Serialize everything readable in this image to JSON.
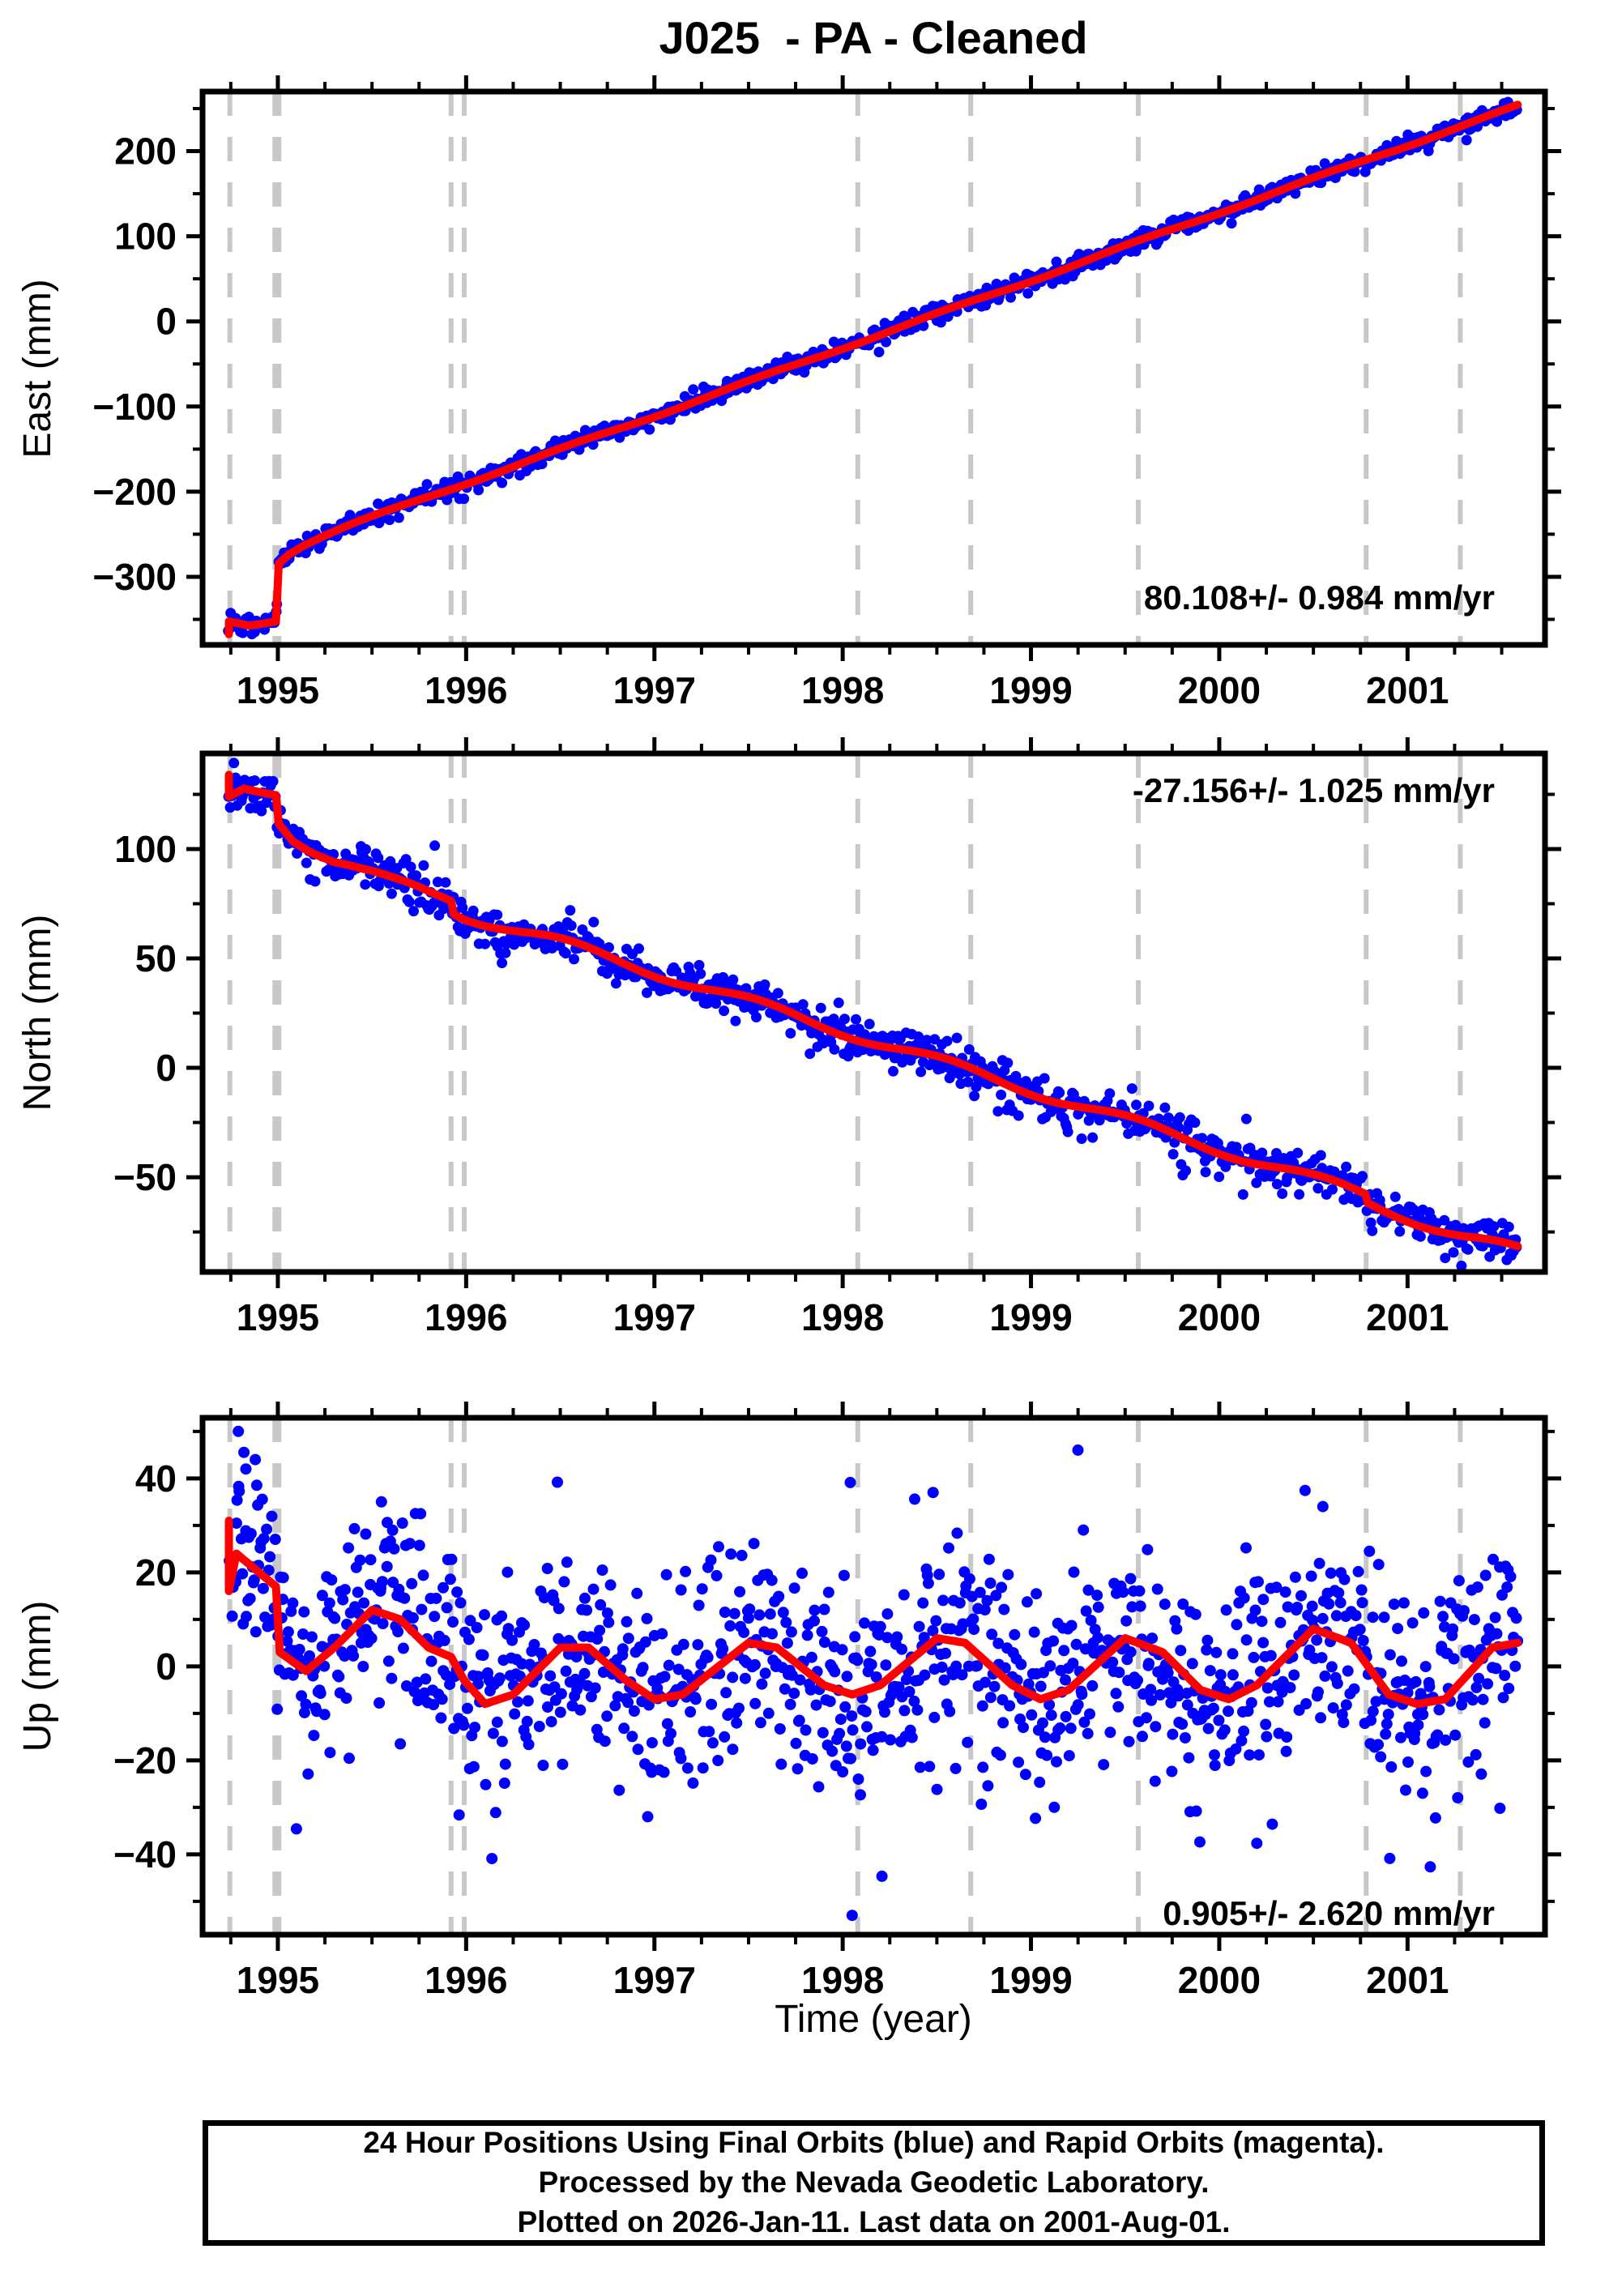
{
  "chart_data": {
    "type": "scatter",
    "title": "J025  - PA - Cleaned",
    "x_axis": {
      "label": "Time (year)",
      "min": 1994.6,
      "max": 2001.73,
      "major_ticks": [
        1995,
        1996,
        1997,
        1998,
        1999,
        2000,
        2001
      ],
      "minor_step": 0.25
    },
    "data_span": [
      1994.735,
      2001.585
    ],
    "events": [
      {
        "t": 1994.745,
        "weight": "thin"
      },
      {
        "t": 1994.995,
        "weight": "thick"
      },
      {
        "t": 1995.92,
        "weight": "thin"
      },
      {
        "t": 1995.99,
        "weight": "thin"
      },
      {
        "t": 1998.08,
        "weight": "thin"
      },
      {
        "t": 1998.68,
        "weight": "thin"
      },
      {
        "t": 1999.57,
        "weight": "thin"
      },
      {
        "t": 2000.78,
        "weight": "thin"
      },
      {
        "t": 2001.28,
        "weight": "thin"
      }
    ],
    "panels": [
      {
        "name": "east",
        "ylabel": "East (mm)",
        "rate_text": "80.108+/- 0.984 mm/yr",
        "rate_anchor": "bottom-right",
        "ylim": [
          -380,
          270
        ],
        "yticks": [
          200,
          100,
          0,
          -100,
          -200,
          -300
        ],
        "y_minor_step": 50,
        "red_curve": [
          [
            1994.74,
            -368
          ],
          [
            1994.74,
            -353
          ],
          [
            1994.85,
            -357
          ],
          [
            1994.99,
            -351
          ],
          [
            1995.005,
            -283
          ],
          [
            1995.06,
            -272
          ],
          [
            1995.14,
            -262
          ],
          [
            1995.25,
            -251
          ],
          [
            1995.4,
            -238
          ],
          [
            1995.6,
            -222
          ],
          [
            1995.8,
            -206
          ],
          [
            1996.0,
            -190
          ],
          [
            1997.0,
            -111
          ],
          [
            1998.0,
            -31
          ],
          [
            1999.0,
            48
          ],
          [
            2000.0,
            128
          ],
          [
            2001.0,
            207
          ],
          [
            2001.585,
            253
          ]
        ],
        "seasonal": {
          "amp": 1.5,
          "phase": 0.3
        },
        "scatter": {
          "sigma": 5.5,
          "n": 900,
          "radius": 6.5,
          "outlier_every": 41,
          "outlier_scale": 2.1
        },
        "extra_points": []
      },
      {
        "name": "north",
        "ylabel": "North (mm)",
        "rate_text": "-27.156+/- 1.025 mm/yr",
        "rate_anchor": "top-right",
        "ylim": [
          -93.3,
          143.7
        ],
        "yticks": [
          100,
          50,
          0,
          -50
        ],
        "y_minor_step": 25,
        "red_curve": [
          [
            1994.74,
            133
          ],
          [
            1994.74,
            123
          ],
          [
            1994.82,
            128
          ],
          [
            1994.99,
            127
          ],
          [
            1995.005,
            114
          ],
          [
            1995.08,
            106
          ],
          [
            1995.18,
            100
          ],
          [
            1995.3,
            94
          ],
          [
            1995.45,
            89
          ],
          [
            1995.6,
            85
          ],
          [
            1995.75,
            82
          ],
          [
            1995.92,
            78
          ],
          [
            1995.935,
            72
          ],
          [
            1995.99,
            70
          ],
          [
            1996.5,
            57
          ],
          [
            1997.0,
            44
          ],
          [
            1997.5,
            30
          ],
          [
            1998.0,
            17
          ],
          [
            1998.5,
            3
          ],
          [
            1999.0,
            -10
          ],
          [
            1999.5,
            -24
          ],
          [
            2000.0,
            -37
          ],
          [
            2000.5,
            -51
          ],
          [
            2000.775,
            -58
          ],
          [
            2000.79,
            -62
          ],
          [
            2001.0,
            -68
          ],
          [
            2001.3,
            -77
          ],
          [
            2001.585,
            -84
          ]
        ],
        "seasonal": {
          "amp": 2.5,
          "phase": 0.3
        },
        "scatter": {
          "sigma": 5.0,
          "n": 900,
          "radius": 6.5,
          "outlier_every": 47,
          "outlier_scale": 2.0
        },
        "extra_points": []
      },
      {
        "name": "up",
        "ylabel": "Up (mm)",
        "rate_text": "0.905+/- 2.620 mm/yr",
        "rate_anchor": "bottom-right",
        "ylim": [
          -57.1,
          52.9
        ],
        "yticks": [
          40,
          20,
          0,
          -20,
          -40
        ],
        "y_minor_step": 10,
        "red_curve": [
          [
            1994.74,
            31
          ],
          [
            1994.74,
            16
          ],
          [
            1994.78,
            24
          ],
          [
            1994.9,
            20
          ],
          [
            1994.99,
            17
          ],
          [
            1995.01,
            3
          ],
          [
            1995.15,
            -1
          ],
          [
            1995.3,
            4
          ],
          [
            1995.5,
            12
          ],
          [
            1995.65,
            10
          ],
          [
            1995.8,
            4
          ],
          [
            1995.92,
            2
          ],
          [
            1995.99,
            -3
          ],
          [
            1996.1,
            -8
          ],
          [
            1996.25,
            -6
          ],
          [
            1996.5,
            4
          ],
          [
            1996.65,
            4
          ],
          [
            1996.85,
            -3
          ],
          [
            1997.0,
            -7
          ],
          [
            1997.15,
            -6
          ],
          [
            1997.5,
            5
          ],
          [
            1997.65,
            4
          ],
          [
            1997.9,
            -4
          ],
          [
            1998.05,
            -6
          ],
          [
            1998.2,
            -4
          ],
          [
            1998.5,
            6
          ],
          [
            1998.65,
            5
          ],
          [
            1998.9,
            -4
          ],
          [
            1999.05,
            -7
          ],
          [
            1999.2,
            -5
          ],
          [
            1999.5,
            6
          ],
          [
            1999.7,
            3
          ],
          [
            1999.9,
            -5
          ],
          [
            2000.05,
            -7
          ],
          [
            2000.2,
            -4
          ],
          [
            2000.5,
            8
          ],
          [
            2000.7,
            5
          ],
          [
            2000.9,
            -6
          ],
          [
            2001.05,
            -8
          ],
          [
            2001.2,
            -7
          ],
          [
            2001.45,
            4
          ],
          [
            2001.585,
            5
          ]
        ],
        "seasonal": {
          "amp": 0,
          "phase": 0.3
        },
        "scatter": {
          "sigma": 11.5,
          "n": 1150,
          "radius": 7,
          "outlier_every": 29,
          "outlier_scale": 2.2
        },
        "extra_points": [
          [
            1994.79,
            50
          ],
          [
            1994.83,
            42
          ],
          [
            1994.88,
            44
          ],
          [
            1998.05,
            -53
          ],
          [
            1995.55,
            35
          ],
          [
            1998.48,
            37
          ],
          [
            2000.55,
            34
          ],
          [
            2001.08,
            -27
          ]
        ]
      }
    ]
  },
  "footer": {
    "lines": [
      "24 Hour Positions Using Final Orbits (blue) and Rapid Orbits (magenta).",
      "Processed by the Nevada Geodetic Laboratory.",
      "Plotted on 2026-Jan-11. Last data on 2001-Aug-01."
    ]
  },
  "colors": {
    "point": "#0000ff",
    "trend": "#ff0000",
    "event_line": "#c8c8c8",
    "frame": "#000000",
    "background": "#ffffff"
  }
}
